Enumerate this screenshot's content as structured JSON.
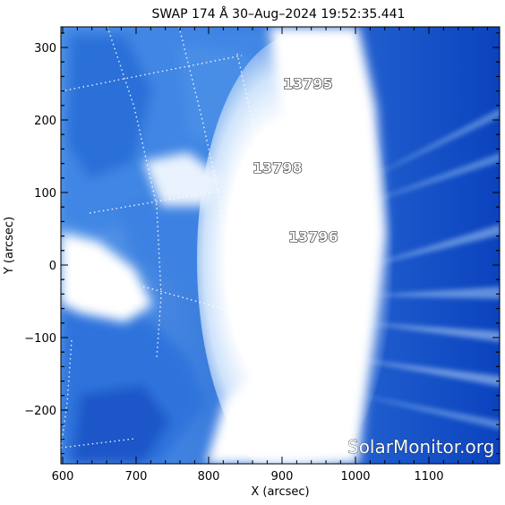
{
  "title": "SWAP 174 Å 30–Aug–2024 19:52:35.441",
  "xlabel": "X (arcsec)",
  "ylabel": "Y (arcsec)",
  "x_ticks": [
    "600",
    "700",
    "800",
    "900",
    "1000",
    "1100"
  ],
  "y_ticks": [
    "300",
    "200",
    "100",
    "0",
    "−100",
    "−200"
  ],
  "active_regions": [
    {
      "id": "13795"
    },
    {
      "id": "13798"
    },
    {
      "id": "13796"
    }
  ],
  "watermark": "SolarMonitor.org",
  "colors": {
    "deep_blue": "#0a3fb8",
    "mid_blue": "#2f78e0",
    "light_blue": "#9cc6f5",
    "saturated": "#ffffff"
  }
}
